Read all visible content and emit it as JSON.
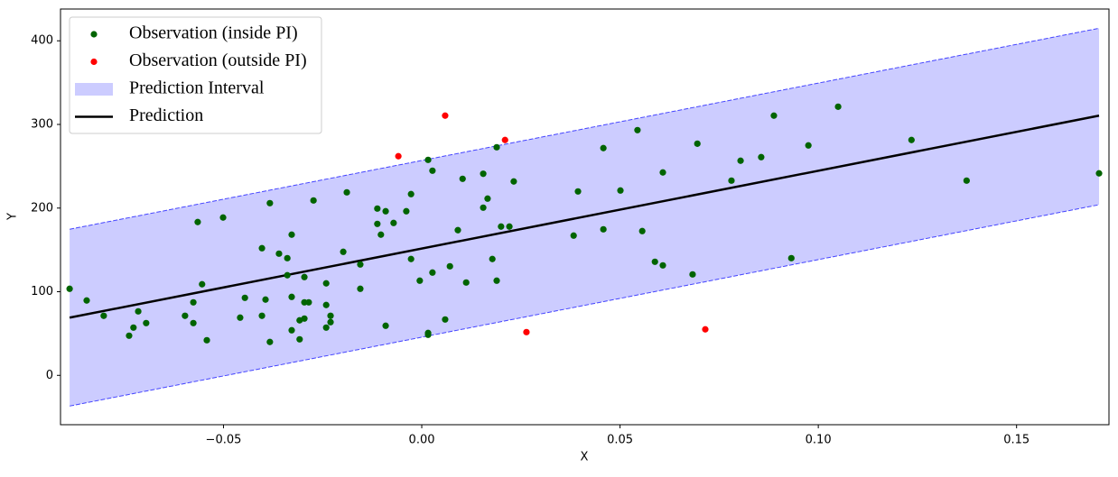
{
  "chart_data": {
    "type": "scatter",
    "xlabel": "X",
    "ylabel": "Y",
    "xlim": [
      -0.0911,
      0.1733
    ],
    "ylim": [
      -59,
      438
    ],
    "xticks": [
      {
        "value": -0.05,
        "label": "−0.05"
      },
      {
        "value": 0,
        "label": "0.00"
      },
      0.05,
      {
        "value": 0.1,
        "label": "0.10"
      },
      0.15
    ],
    "yticks": [
      0,
      100,
      200,
      300,
      400
    ],
    "legend": "upper left",
    "series": [
      {
        "name": "Observation (inside PI)",
        "type": "scatter",
        "color": "#006400",
        "x": [
          -0.0888,
          -0.0845,
          -0.0802,
          -0.0738,
          -0.0727,
          -0.0715,
          -0.0695,
          -0.0597,
          -0.0576,
          -0.0576,
          -0.0565,
          -0.0554,
          -0.0542,
          -0.0501,
          -0.0458,
          -0.0446,
          -0.0403,
          -0.0394,
          -0.0383,
          -0.0383,
          -0.0403,
          -0.036,
          -0.0339,
          -0.0339,
          -0.0328,
          -0.0328,
          -0.0328,
          -0.0308,
          -0.0308,
          -0.0296,
          -0.0296,
          -0.0296,
          -0.0285,
          -0.0273,
          -0.0241,
          -0.0241,
          -0.0241,
          -0.023,
          -0.023,
          -0.0198,
          -0.0189,
          -0.0155,
          -0.0155,
          -0.0112,
          -0.0112,
          -0.0103,
          -0.0091,
          -0.0091,
          -0.0071,
          -0.0039,
          -0.0027,
          -0.0027,
          -0.0005,
          0.0016,
          0.0016,
          0.0016,
          0.0027,
          0.0027,
          0.0059,
          0.0071,
          0.0091,
          0.0103,
          0.0112,
          0.0155,
          0.0155,
          0.0166,
          0.0178,
          0.0189,
          0.0189,
          0.02,
          0.0221,
          0.0232,
          0.0383,
          0.0394,
          0.0458,
          0.0458,
          0.0501,
          0.0544,
          0.0556,
          0.0588,
          0.0608,
          0.0608,
          0.0683,
          0.0695,
          0.0781,
          0.0804,
          0.0856,
          0.0888,
          0.0932,
          0.0975,
          0.105,
          0.1235,
          0.1374,
          0.1708
        ],
        "values": [
          103.5,
          89.5,
          71.2,
          47.4,
          57.1,
          76.5,
          62.5,
          71.2,
          87.3,
          62.5,
          183.3,
          108.9,
          42,
          188.7,
          69,
          92.7,
          71.2,
          90.6,
          39.9,
          205.9,
          152,
          145.5,
          140.1,
          119.7,
          168.2,
          93.8,
          53.9,
          65.8,
          43.1,
          117.5,
          67.9,
          87.3,
          87.3,
          209.1,
          110,
          84.1,
          57.1,
          63.6,
          71.2,
          147.7,
          218.8,
          132.6,
          103.5,
          199.4,
          181.1,
          168.2,
          196.2,
          59.3,
          182.2,
          196.2,
          139.1,
          216.7,
          113.2,
          257.6,
          50.7,
          48.5,
          244.7,
          122.9,
          66.8,
          130.4,
          173.6,
          235,
          111,
          241,
          200.5,
          211.3,
          139.1,
          272.7,
          113.2,
          177.9,
          177.9,
          231.8,
          167.1,
          219.9,
          271.7,
          174.6,
          221,
          293.2,
          172.5,
          135.8,
          131.5,
          242.6,
          120.7,
          277,
          232.8,
          256.6,
          260.9,
          310.5,
          140.1,
          274.9,
          321.2,
          281.4,
          232.8,
          241.5
        ]
      },
      {
        "name": "Observation (outside PI)",
        "type": "scatter",
        "color": "#ff0000",
        "x": [
          -0.0059,
          0.0059,
          0.021,
          0.0264,
          0.0715
        ],
        "values": [
          262,
          310.5,
          281.4,
          51.7,
          55
        ]
      },
      {
        "name": "Prediction Interval",
        "type": "area",
        "color": "#0000ff",
        "alpha": 0.2,
        "x": [
          -0.0888,
          0.1708
        ],
        "upper": [
          174.7,
          415
        ],
        "lower": [
          -36.7,
          204
        ]
      },
      {
        "name": "Prediction",
        "type": "line",
        "color": "#000000",
        "x": [
          -0.0888,
          0.1708
        ],
        "values": [
          69,
          310.5
        ]
      }
    ]
  }
}
